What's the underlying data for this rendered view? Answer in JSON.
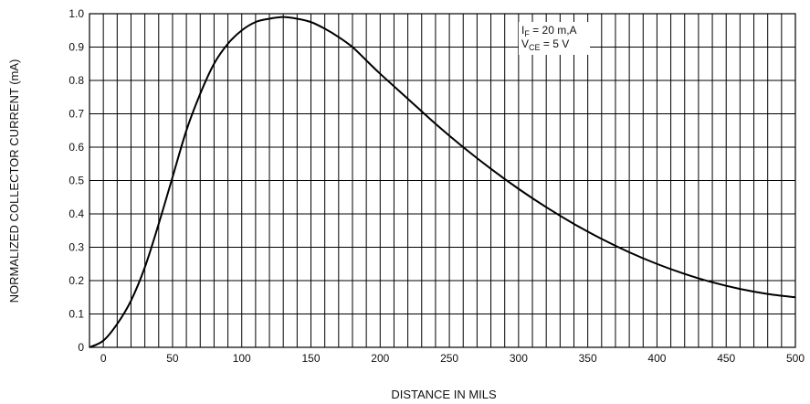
{
  "chart_data": {
    "type": "line",
    "title": "",
    "xlabel": "DISTANCE IN MILS",
    "ylabel": "NORMALIZED COLLECTOR CURRENT (mA)",
    "xlim": [
      -10,
      500
    ],
    "ylim": [
      0,
      1.0
    ],
    "xticks": [
      0,
      50,
      100,
      150,
      200,
      250,
      300,
      350,
      400,
      450,
      500
    ],
    "xtick_labels": [
      "0",
      "50",
      "100",
      "150",
      "200",
      "250",
      "300",
      "350",
      "400",
      "450",
      "500"
    ],
    "yticks": [
      0,
      0.1,
      0.2,
      0.3,
      0.4,
      0.5,
      0.6,
      0.7,
      0.8,
      0.9,
      1.0
    ],
    "ytick_labels": [
      "0",
      "0.1",
      "0.2",
      "0.3",
      "0.4",
      "0.5",
      "0.6",
      "0.7",
      "0.8",
      "0.9",
      "1.0"
    ],
    "grid": true,
    "grid_x_step": 10,
    "grid_y_step": 0.1,
    "annotations": [
      {
        "main": "I",
        "sub": "F",
        "rest": " = 20 m,A"
      },
      {
        "main": "V",
        "sub": "CE",
        "rest": " = 5 V"
      }
    ],
    "series": [
      {
        "x": [
          -10,
          0,
          10,
          20,
          30,
          40,
          50,
          60,
          70,
          80,
          90,
          100,
          110,
          120,
          130,
          140,
          150,
          160,
          170,
          180,
          190,
          200,
          220,
          240,
          260,
          280,
          300,
          320,
          340,
          360,
          380,
          400,
          420,
          440,
          460,
          480,
          500
        ],
        "values": [
          0.0,
          0.02,
          0.07,
          0.14,
          0.24,
          0.37,
          0.51,
          0.65,
          0.76,
          0.85,
          0.91,
          0.95,
          0.975,
          0.985,
          0.99,
          0.985,
          0.975,
          0.955,
          0.93,
          0.9,
          0.86,
          0.82,
          0.745,
          0.67,
          0.6,
          0.535,
          0.475,
          0.42,
          0.37,
          0.325,
          0.285,
          0.25,
          0.22,
          0.195,
          0.175,
          0.16,
          0.15
        ]
      }
    ]
  }
}
